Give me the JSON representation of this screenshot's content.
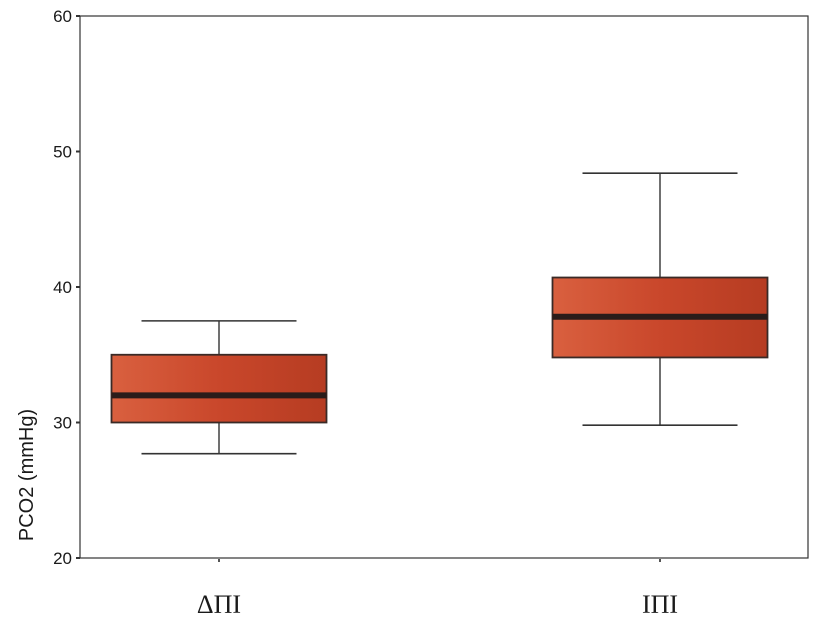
{
  "chart_data": {
    "type": "box",
    "ylabel": "PCO2 (mmHg)",
    "ylim": [
      20,
      60
    ],
    "yticks": [
      20,
      30,
      40,
      50,
      60
    ],
    "grid": false,
    "box_color": "#c9472b",
    "median_color": "#2a1c1a",
    "categories": [
      "ΔΠΙ",
      "ΙΠΙ"
    ],
    "boxes": [
      {
        "category": "ΔΠΙ",
        "whisker_low": 27.7,
        "q1": 30.0,
        "median": 32.0,
        "q3": 35.0,
        "whisker_high": 37.5
      },
      {
        "category": "ΙΠΙ",
        "whisker_low": 29.8,
        "q1": 34.8,
        "median": 37.8,
        "q3": 40.7,
        "whisker_high": 48.4
      }
    ]
  }
}
